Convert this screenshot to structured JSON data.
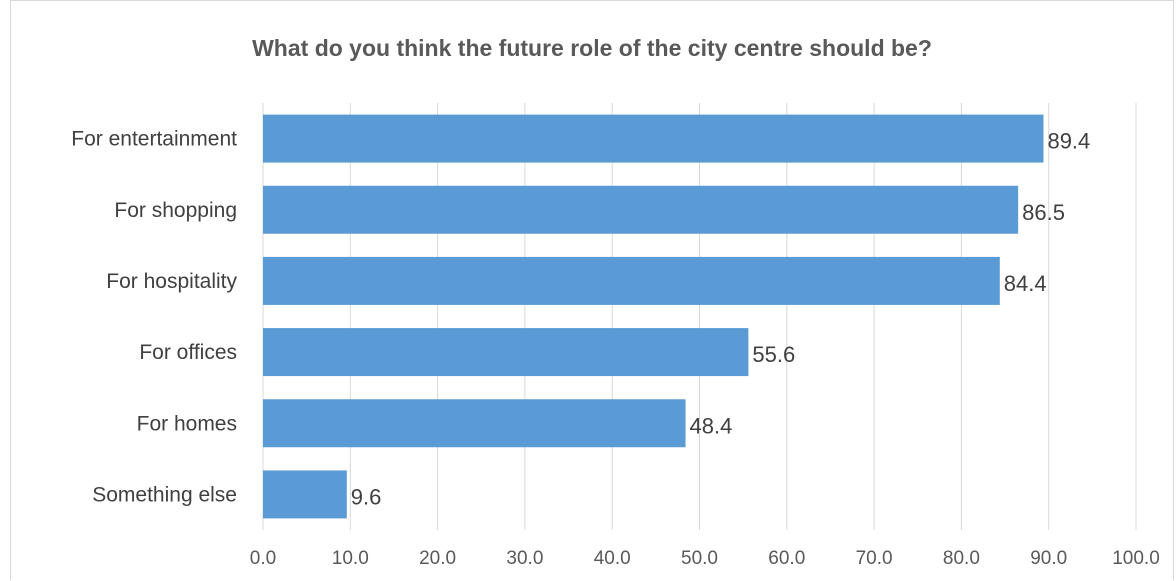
{
  "chart_data": {
    "type": "bar",
    "orientation": "horizontal",
    "title": "What do you think the future role of the city centre should be?",
    "categories": [
      "For entertainment",
      "For shopping",
      "For hospitality",
      "For offices",
      "For homes",
      "Something else"
    ],
    "values": [
      89.4,
      86.5,
      84.4,
      55.6,
      48.4,
      9.6
    ],
    "data_labels": [
      "89.4",
      "86.5",
      "84.4",
      "55.6",
      "48.4",
      "9.6"
    ],
    "xlabel": "",
    "ylabel": "",
    "xlim": [
      0,
      100
    ],
    "x_ticks": [
      0,
      10,
      20,
      30,
      40,
      50,
      60,
      70,
      80,
      90,
      100
    ],
    "x_tick_labels": [
      "0.0",
      "10.0",
      "20.0",
      "30.0",
      "40.0",
      "50.0",
      "60.0",
      "70.0",
      "80.0",
      "90.0",
      "100.0"
    ],
    "grid": "vertical",
    "legend": "none",
    "bar_color": "#5b9bd5",
    "grid_color": "#d9d9d9"
  }
}
